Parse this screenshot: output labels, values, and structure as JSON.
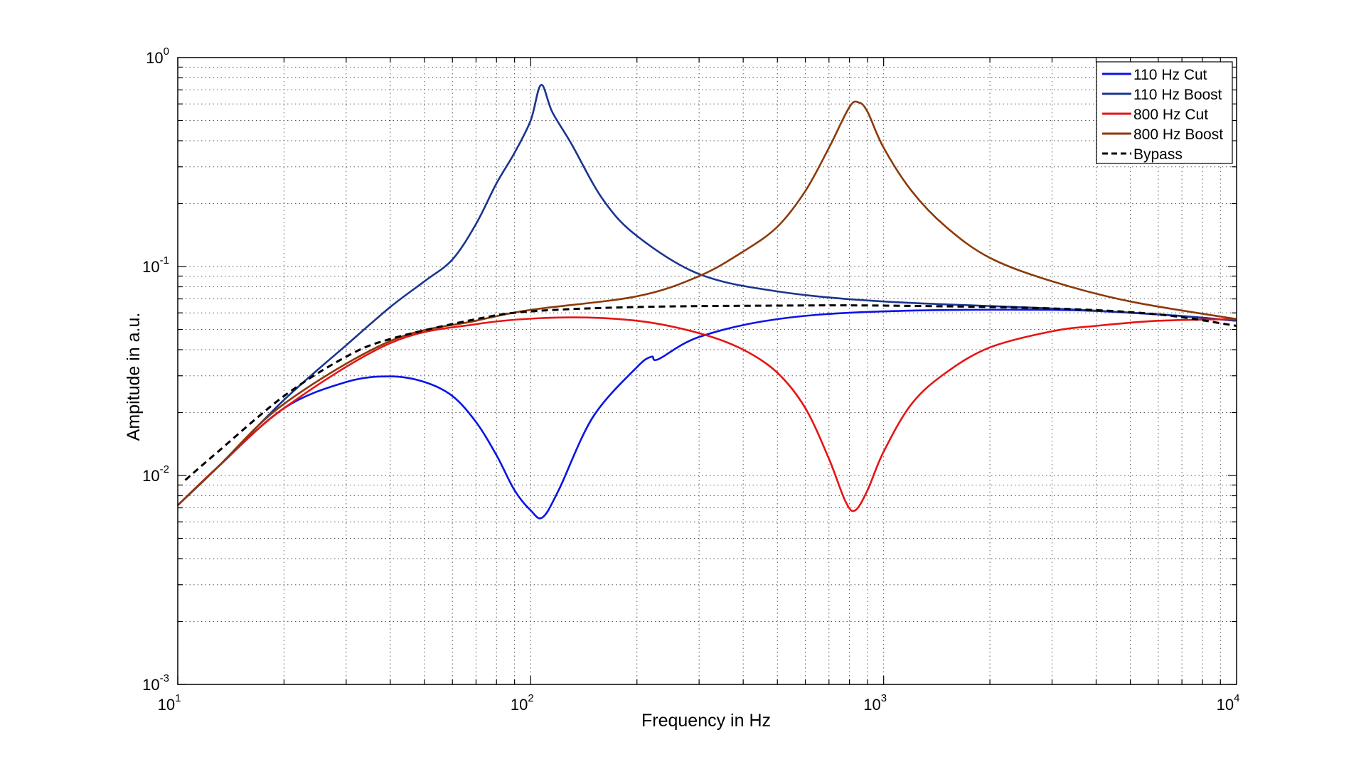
{
  "chart_data": {
    "type": "line",
    "title": "",
    "xlabel": "Frequency in Hz",
    "ylabel": "Ampitude in a.u.",
    "xscale": "log",
    "yscale": "log",
    "xlim": [
      10,
      10000
    ],
    "ylim": [
      0.001,
      1
    ],
    "grid": true,
    "legend_position": "top-right",
    "x_ticks": [
      {
        "base": "10",
        "exp": "1",
        "value": 10
      },
      {
        "base": "10",
        "exp": "2",
        "value": 100
      },
      {
        "base": "10",
        "exp": "3",
        "value": 1000
      },
      {
        "base": "10",
        "exp": "4",
        "value": 10000
      }
    ],
    "y_ticks": [
      {
        "base": "10",
        "exp": "0",
        "value": 1
      },
      {
        "base": "10",
        "exp": "-1",
        "value": 0.1
      },
      {
        "base": "10",
        "exp": "-2",
        "value": 0.01
      },
      {
        "base": "10",
        "exp": "-3",
        "value": 0.001
      }
    ],
    "series": [
      {
        "name": "110 Hz Cut",
        "color": "#0a14e6",
        "dash": false,
        "x": [
          10,
          13,
          20,
          30,
          40,
          50,
          60,
          70,
          80,
          90,
          100,
          108,
          120,
          150,
          200,
          220,
          230,
          300,
          500,
          1000,
          3000,
          6000,
          10000
        ],
        "y": [
          0.0072,
          0.011,
          0.021,
          0.028,
          0.0298,
          0.028,
          0.024,
          0.018,
          0.0125,
          0.0085,
          0.0068,
          0.0063,
          0.0085,
          0.019,
          0.033,
          0.037,
          0.036,
          0.046,
          0.056,
          0.061,
          0.062,
          0.059,
          0.055
        ]
      },
      {
        "name": "110 Hz Boost",
        "color": "#1a3590",
        "dash": false,
        "x": [
          10,
          13,
          20,
          30,
          40,
          50,
          60,
          70,
          80,
          90,
          100,
          107,
          115,
          130,
          160,
          200,
          300,
          500,
          1000,
          3000,
          6000,
          10000
        ],
        "y": [
          0.0072,
          0.011,
          0.023,
          0.042,
          0.064,
          0.085,
          0.108,
          0.16,
          0.25,
          0.35,
          0.5,
          0.74,
          0.55,
          0.39,
          0.21,
          0.14,
          0.092,
          0.076,
          0.068,
          0.063,
          0.059,
          0.055
        ]
      },
      {
        "name": "800 Hz Cut",
        "color": "#e61414",
        "dash": false,
        "x": [
          10,
          13,
          20,
          40,
          70,
          120,
          200,
          300,
          400,
          500,
          600,
          700,
          780,
          830,
          900,
          1000,
          1200,
          1500,
          2000,
          3000,
          4000,
          6000,
          10000
        ],
        "y": [
          0.0072,
          0.011,
          0.021,
          0.043,
          0.053,
          0.057,
          0.055,
          0.048,
          0.04,
          0.031,
          0.021,
          0.012,
          0.0075,
          0.0068,
          0.0085,
          0.013,
          0.022,
          0.031,
          0.041,
          0.049,
          0.052,
          0.055,
          0.056
        ]
      },
      {
        "name": "800 Hz Boost",
        "color": "#8b3a0a",
        "dash": false,
        "x": [
          10,
          13,
          20,
          40,
          70,
          100,
          200,
          300,
          400,
          500,
          600,
          700,
          800,
          850,
          900,
          1000,
          1200,
          1500,
          2000,
          3000,
          5000,
          10000
        ],
        "y": [
          0.0072,
          0.011,
          0.022,
          0.044,
          0.055,
          0.062,
          0.072,
          0.09,
          0.118,
          0.155,
          0.23,
          0.37,
          0.58,
          0.61,
          0.55,
          0.37,
          0.23,
          0.155,
          0.11,
          0.085,
          0.068,
          0.056
        ]
      },
      {
        "name": "Bypass",
        "color": "#000000",
        "dash": true,
        "x": [
          10.5,
          13,
          20,
          30,
          40,
          70,
          100,
          200,
          500,
          1000,
          3000,
          6000,
          10000
        ],
        "y": [
          0.0095,
          0.013,
          0.024,
          0.037,
          0.045,
          0.056,
          0.061,
          0.064,
          0.065,
          0.065,
          0.063,
          0.059,
          0.052
        ]
      }
    ]
  }
}
